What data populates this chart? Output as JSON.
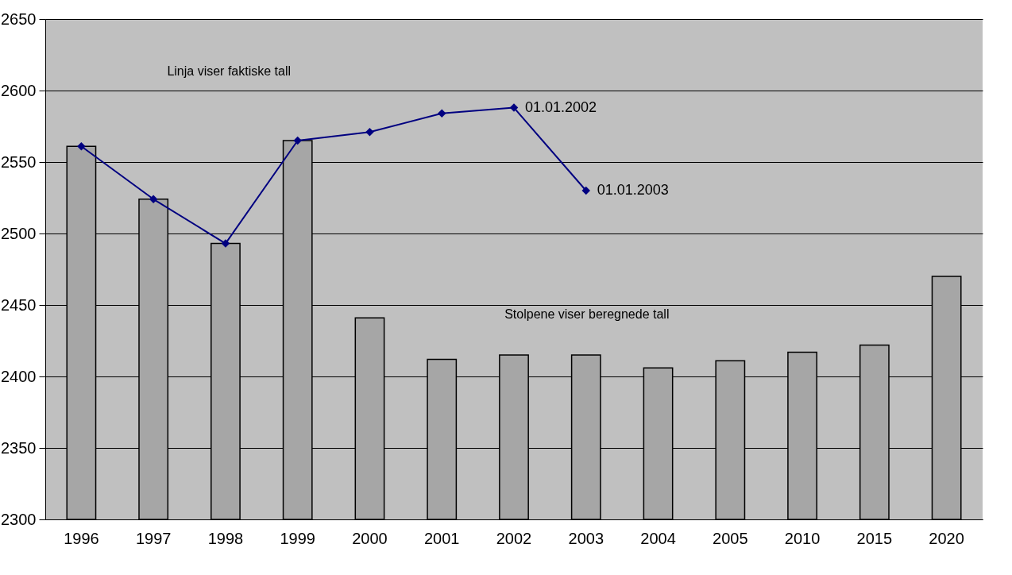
{
  "chart_data": {
    "type": "bar",
    "categories": [
      "1996",
      "1997",
      "1998",
      "1999",
      "2000",
      "2001",
      "2002",
      "2003",
      "2004",
      "2005",
      "2010",
      "2015",
      "2020"
    ],
    "series": [
      {
        "color": "#a6a6a6",
        "values": [
          2561,
          2524,
          2493,
          2565,
          2441,
          2412,
          2415,
          2415,
          2406,
          2411,
          2417,
          2422,
          2470
        ]
      },
      {
        "type": "line",
        "color": "#000080",
        "values": [
          2561,
          2524,
          2493,
          2565,
          2571,
          2584,
          2588,
          2530,
          null,
          null,
          null,
          null,
          null
        ]
      }
    ],
    "ylim": [
      2300,
      2650
    ],
    "yticks": [
      2300,
      2350,
      2400,
      2450,
      2500,
      2550,
      2600,
      2650
    ],
    "grid": "y",
    "marker": "diamond",
    "line_style": "solid",
    "annotations": [
      "Linja viser faktiske tall",
      "Stolpene viser beregnede tall",
      {
        "text": "01.01.2002",
        "x": "2002",
        "y": 2588
      },
      {
        "text": "01.01.2003",
        "x": "2003",
        "y": 2530
      }
    ]
  }
}
